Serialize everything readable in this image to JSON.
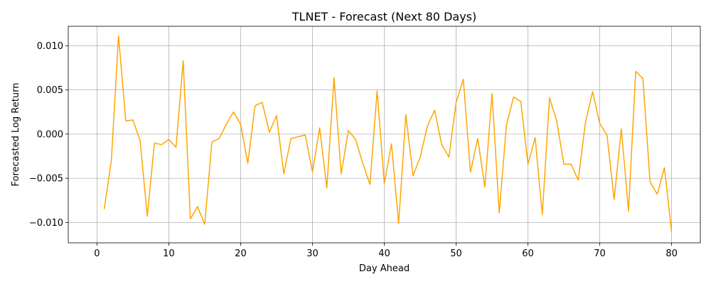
{
  "chart_data": {
    "type": "line",
    "title": "TLNET - Forecast (Next 80 Days)",
    "xlabel": "Day Ahead",
    "ylabel": "Forecasted Log Return",
    "xlim": [
      -4,
      84
    ],
    "ylim": [
      -0.0123,
      0.0122
    ],
    "xticks": [
      0,
      10,
      20,
      30,
      40,
      50,
      60,
      70,
      80
    ],
    "xtick_labels": [
      "0",
      "10",
      "20",
      "30",
      "40",
      "50",
      "60",
      "70",
      "80"
    ],
    "yticks": [
      -0.01,
      -0.005,
      0.0,
      0.005,
      0.01
    ],
    "ytick_labels": [
      "−0.010",
      "−0.005",
      "0.000",
      "0.005",
      "0.010"
    ],
    "grid": true,
    "color": "#FFA500",
    "series": [
      {
        "x": [
          1,
          2,
          3,
          4,
          5,
          6,
          7,
          8,
          9,
          10,
          11,
          12,
          13,
          14,
          15,
          16,
          17,
          18,
          19,
          20,
          21,
          22,
          23,
          24,
          25,
          26,
          27,
          28,
          29,
          30,
          31,
          32,
          33,
          34,
          35,
          36,
          37,
          38,
          39,
          40,
          41,
          42,
          43,
          44,
          45,
          46,
          47,
          48,
          49,
          50,
          51,
          52,
          53,
          54,
          55,
          56,
          57,
          58,
          59,
          60,
          61,
          62,
          63,
          64,
          65,
          66,
          67,
          68,
          69,
          70,
          71,
          72,
          73,
          74,
          75,
          76,
          77,
          78,
          79,
          80
        ],
        "values": [
          -0.0085,
          -0.003,
          0.0111,
          0.0015,
          0.0016,
          -0.0007,
          -0.0093,
          -0.001,
          -0.0012,
          -0.0006,
          -0.0015,
          0.0083,
          -0.0096,
          -0.0082,
          -0.0102,
          -0.0009,
          -0.0005,
          0.0011,
          0.0025,
          0.0011,
          -0.0033,
          0.0032,
          0.0036,
          0.0002,
          0.0021,
          -0.0045,
          -0.0005,
          -0.0003,
          -0.0001,
          -0.0043,
          0.0007,
          -0.0061,
          0.0064,
          -0.0045,
          0.0004,
          -0.0006,
          -0.0033,
          -0.0057,
          0.0049,
          -0.0056,
          -0.0011,
          -0.0101,
          0.0022,
          -0.0047,
          -0.0026,
          0.0009,
          0.0027,
          -0.0012,
          -0.0026,
          0.0036,
          0.0062,
          -0.0043,
          -0.0005,
          -0.006,
          0.0046,
          -0.0089,
          0.001,
          0.0042,
          0.0037,
          -0.0034,
          -0.0004,
          -0.0091,
          0.0041,
          0.0015,
          -0.0034,
          -0.0034,
          -0.0052,
          0.0013,
          0.0048,
          0.0012,
          -0.0001,
          -0.0074,
          0.0006,
          -0.0087,
          0.0071,
          0.0063,
          -0.0054,
          -0.0068,
          -0.0038,
          -0.0111
        ]
      }
    ]
  }
}
